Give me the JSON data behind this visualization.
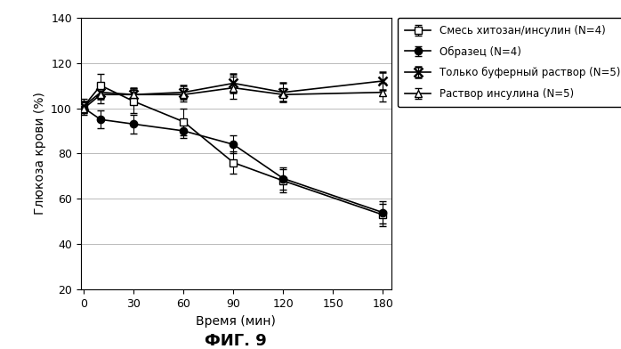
{
  "title": "",
  "xlabel": "Время (мин)",
  "ylabel": "Глюкоза крови (%)",
  "fig_caption": "ФИГ. 9",
  "xlim": [
    -2,
    185
  ],
  "ylim": [
    20,
    140
  ],
  "yticks": [
    20,
    40,
    60,
    80,
    100,
    120,
    140
  ],
  "xticks": [
    0,
    30,
    60,
    90,
    120,
    150,
    180
  ],
  "series": [
    {
      "label": "Смесь хитозан/инсулин (N=4)",
      "x": [
        0,
        10,
        30,
        60,
        90,
        120,
        180
      ],
      "y": [
        101,
        110,
        103,
        94,
        76,
        68,
        53
      ],
      "yerr": [
        3,
        5,
        5,
        6,
        5,
        5,
        5
      ],
      "marker": "s",
      "marker_fill": "white",
      "color": "black",
      "linewidth": 1.2
    },
    {
      "label": "Образец (N=4)",
      "x": [
        0,
        10,
        30,
        60,
        90,
        120,
        180
      ],
      "y": [
        100,
        95,
        93,
        90,
        84,
        69,
        54
      ],
      "yerr": [
        3,
        4,
        4,
        3,
        4,
        5,
        5
      ],
      "marker": "o",
      "marker_fill": "black",
      "color": "black",
      "linewidth": 1.2
    },
    {
      "label": "Только буферный раствор (N=5)",
      "x": [
        0,
        10,
        30,
        60,
        90,
        120,
        180
      ],
      "y": [
        101,
        107,
        106,
        107,
        111,
        107,
        112
      ],
      "yerr": [
        2,
        3,
        3,
        3,
        4,
        4,
        4
      ],
      "marker": "x",
      "marker_fill": "black",
      "color": "black",
      "linewidth": 1.2
    },
    {
      "label": "Раствор инсулина (N=5)",
      "x": [
        0,
        10,
        30,
        60,
        90,
        120,
        180
      ],
      "y": [
        100,
        106,
        106,
        106,
        109,
        106,
        107
      ],
      "yerr": [
        2,
        4,
        3,
        3,
        5,
        3,
        4
      ],
      "marker": "^",
      "marker_fill": "white",
      "color": "black",
      "linewidth": 1.2
    }
  ],
  "legend_loc": "upper right",
  "background_color": "#ffffff",
  "grid_color": "#b0b0b0"
}
